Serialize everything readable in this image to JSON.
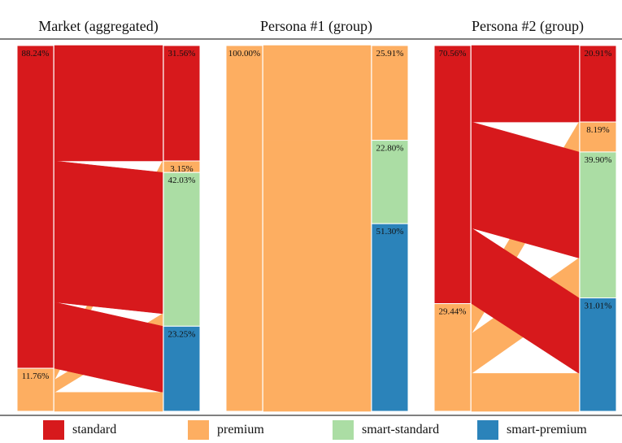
{
  "colors": {
    "standard": "#d7191c",
    "premium": "#fdae61",
    "smart-standard": "#abdda4",
    "smart-premium": "#2b83ba"
  },
  "legend": [
    {
      "key": "standard",
      "label": "standard"
    },
    {
      "key": "premium",
      "label": "premium"
    },
    {
      "key": "smart-standard",
      "label": "smart-standard"
    },
    {
      "key": "smart-premium",
      "label": "smart-premium"
    }
  ],
  "chart_data": [
    {
      "type": "alluvial",
      "title": "Market (aggregated)",
      "left": [
        {
          "key": "standard",
          "value": 88.24,
          "label": "88.24%"
        },
        {
          "key": "premium",
          "value": 11.76,
          "label": "11.76%"
        }
      ],
      "right": [
        {
          "key": "standard",
          "value": 31.56,
          "label": "31.56%"
        },
        {
          "key": "premium",
          "value": 3.15,
          "label": "3.15%"
        },
        {
          "key": "smart-standard",
          "value": 42.03,
          "label": "42.03%"
        },
        {
          "key": "smart-premium",
          "value": 23.25,
          "label": "23.25%"
        }
      ],
      "flows": [
        {
          "from": "standard",
          "to": "standard",
          "value": 31.56
        },
        {
          "from": "premium",
          "to": "premium",
          "value": 3.15
        },
        {
          "from": "standard",
          "to": "smart-standard",
          "value": 38.6
        },
        {
          "from": "premium",
          "to": "smart-standard",
          "value": 3.43
        },
        {
          "from": "standard",
          "to": "smart-premium",
          "value": 18.08
        },
        {
          "from": "premium",
          "to": "smart-premium",
          "value": 5.17
        }
      ]
    },
    {
      "type": "alluvial",
      "title": "Persona #1 (group)",
      "left": [
        {
          "key": "premium",
          "value": 100.0,
          "label": "100.00%"
        }
      ],
      "right": [
        {
          "key": "premium",
          "value": 25.91,
          "label": "25.91%"
        },
        {
          "key": "smart-standard",
          "value": 22.8,
          "label": "22.80%"
        },
        {
          "key": "smart-premium",
          "value": 51.3,
          "label": "51.30%"
        }
      ],
      "flows": [
        {
          "from": "premium",
          "to": "premium",
          "value": 25.91
        },
        {
          "from": "premium",
          "to": "smart-standard",
          "value": 22.8
        },
        {
          "from": "premium",
          "to": "smart-premium",
          "value": 51.3
        }
      ]
    },
    {
      "type": "alluvial",
      "title": "Persona #2 (group)",
      "left": [
        {
          "key": "standard",
          "value": 70.56,
          "label": "70.56%"
        },
        {
          "key": "premium",
          "value": 29.44,
          "label": "29.44%"
        }
      ],
      "right": [
        {
          "key": "standard",
          "value": 20.91,
          "label": "20.91%"
        },
        {
          "key": "premium",
          "value": 8.19,
          "label": "8.19%"
        },
        {
          "key": "smart-standard",
          "value": 39.9,
          "label": "39.90%"
        },
        {
          "key": "smart-premium",
          "value": 31.01,
          "label": "31.01%"
        }
      ],
      "flows": [
        {
          "from": "standard",
          "to": "standard",
          "value": 20.91
        },
        {
          "from": "premium",
          "to": "premium",
          "value": 8.19
        },
        {
          "from": "standard",
          "to": "smart-standard",
          "value": 29.0
        },
        {
          "from": "premium",
          "to": "smart-standard",
          "value": 10.9
        },
        {
          "from": "standard",
          "to": "smart-premium",
          "value": 20.65
        },
        {
          "from": "premium",
          "to": "smart-premium",
          "value": 10.36
        }
      ]
    }
  ]
}
